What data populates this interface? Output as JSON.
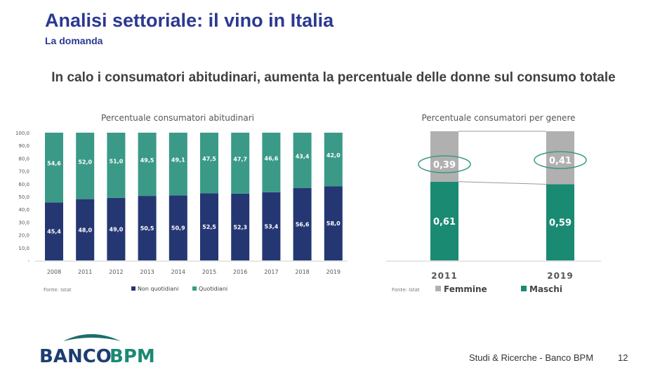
{
  "header": {
    "title": "Analisi settoriale: il vino in Italia",
    "subtitle": "La domanda",
    "headline": "In calo i consumatori abitudinari, aumenta la percentuale delle donne sul consumo totale"
  },
  "footer": {
    "logo_text": "BANCO BPM",
    "text": "Studi & Ricerche - Banco BPM",
    "page": "12"
  },
  "colors": {
    "navy": "#253773",
    "teal": "#3a9a87",
    "grey": "#b0b0b0",
    "green": "#1a8a72",
    "brand": "#2b3990"
  },
  "chart_data": [
    {
      "type": "bar",
      "stacked": true,
      "title": "Percentuale consumatori abitudinari",
      "categories": [
        "2008",
        "2011",
        "2012",
        "2013",
        "2014",
        "2015",
        "2016",
        "2017",
        "2018",
        "2019"
      ],
      "series": [
        {
          "name": "Non quotidiani",
          "color": "#253773",
          "values": [
            45.4,
            48.0,
            49.0,
            50.5,
            50.9,
            52.5,
            52.3,
            53.4,
            56.6,
            58.0
          ],
          "labels": [
            "45,4",
            "48,0",
            "49,0",
            "50,5",
            "50,9",
            "52,5",
            "52,3",
            "53,4",
            "56,6",
            "58,0"
          ]
        },
        {
          "name": "Quotidiani",
          "color": "#3a9a87",
          "values": [
            54.6,
            52.0,
            51.0,
            49.5,
            49.1,
            47.5,
            47.7,
            46.6,
            43.4,
            42.0
          ],
          "labels": [
            "54,6",
            "52,0",
            "51,0",
            "49,5",
            "49,1",
            "47,5",
            "47,7",
            "46,6",
            "43,4",
            "42,0"
          ]
        }
      ],
      "ylim": [
        0,
        100
      ],
      "yticks": [
        "-",
        "10,0",
        "20,0",
        "30,0",
        "40,0",
        "50,0",
        "60,0",
        "70,0",
        "80,0",
        "90,0",
        "100,0"
      ],
      "source": "Fonte: Istat",
      "legend": "bottom"
    },
    {
      "type": "bar",
      "stacked": true,
      "title": "Percentuale consumatori per genere",
      "categories": [
        "2011",
        "2019"
      ],
      "series": [
        {
          "name": "Maschi",
          "color": "#1a8a72",
          "values": [
            0.61,
            0.59
          ],
          "labels": [
            "0,61",
            "0,59"
          ]
        },
        {
          "name": "Femmine",
          "color": "#b0b0b0",
          "values": [
            0.39,
            0.41
          ],
          "labels": [
            "0,39",
            "0,41"
          ]
        }
      ],
      "ylim": [
        0,
        1
      ],
      "highlighted": "Femmine",
      "source": "Fonte: Istat",
      "legend": "bottom"
    }
  ]
}
